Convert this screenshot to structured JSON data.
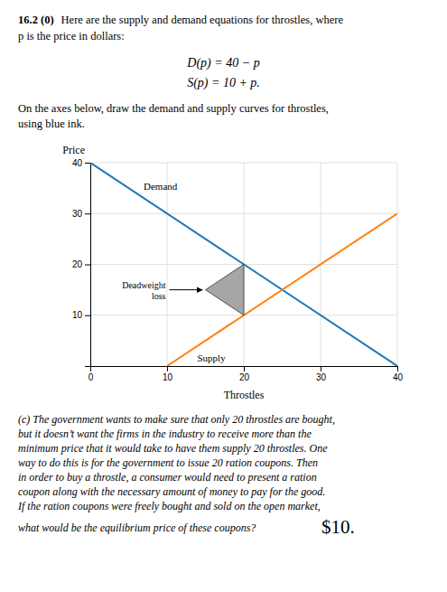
{
  "chart_data": {
    "type": "line",
    "title": "16.2 (0)",
    "intro": [
      "Here are the supply and demand equations for throstles, where",
      "p is the price in dollars:"
    ],
    "equations": [
      "D(p) = 40 − p",
      "S(p) = 10 + p."
    ],
    "instructions": [
      "On the axes below, draw the demand and supply curves for throstles,",
      "using blue ink."
    ],
    "x_label": "Throstles",
    "y_label": "Price",
    "xlim": [
      0,
      40
    ],
    "ylim": [
      0,
      40
    ],
    "xticks": [
      0,
      10,
      20,
      30,
      40
    ],
    "yticks": [
      10,
      20,
      30,
      40
    ],
    "grid": true,
    "series": [
      {
        "name": "Demand",
        "x": [
          0,
          40
        ],
        "values": [
          40,
          0
        ]
      },
      {
        "name": "Supply",
        "x": [
          10,
          40
        ],
        "values": [
          0,
          30
        ]
      }
    ],
    "deadweight_loss": {
      "label": "Deadweight\nloss",
      "x": [
        20,
        20,
        15
      ],
      "y": [
        10,
        20,
        15
      ],
      "color": "#888888"
    },
    "question_lines": [
      "(c) The government wants to make sure that only 20 throstles are bought,",
      "but it doesn’t want the firms in the industry to receive more than the",
      "minimum price that it would take to have them supply 20 throstles.  One",
      "way to do this is for the government to issue 20 ration coupons.  Then",
      "in order to buy a throstle, a consumer would need to present a ration",
      "coupon along with the necessary amount of money to pay for the good.",
      "If the ration coupons were freely bought and sold on the open market,"
    ],
    "question": "what would be the equilibrium price of these coupons?",
    "answer": "$10."
  }
}
